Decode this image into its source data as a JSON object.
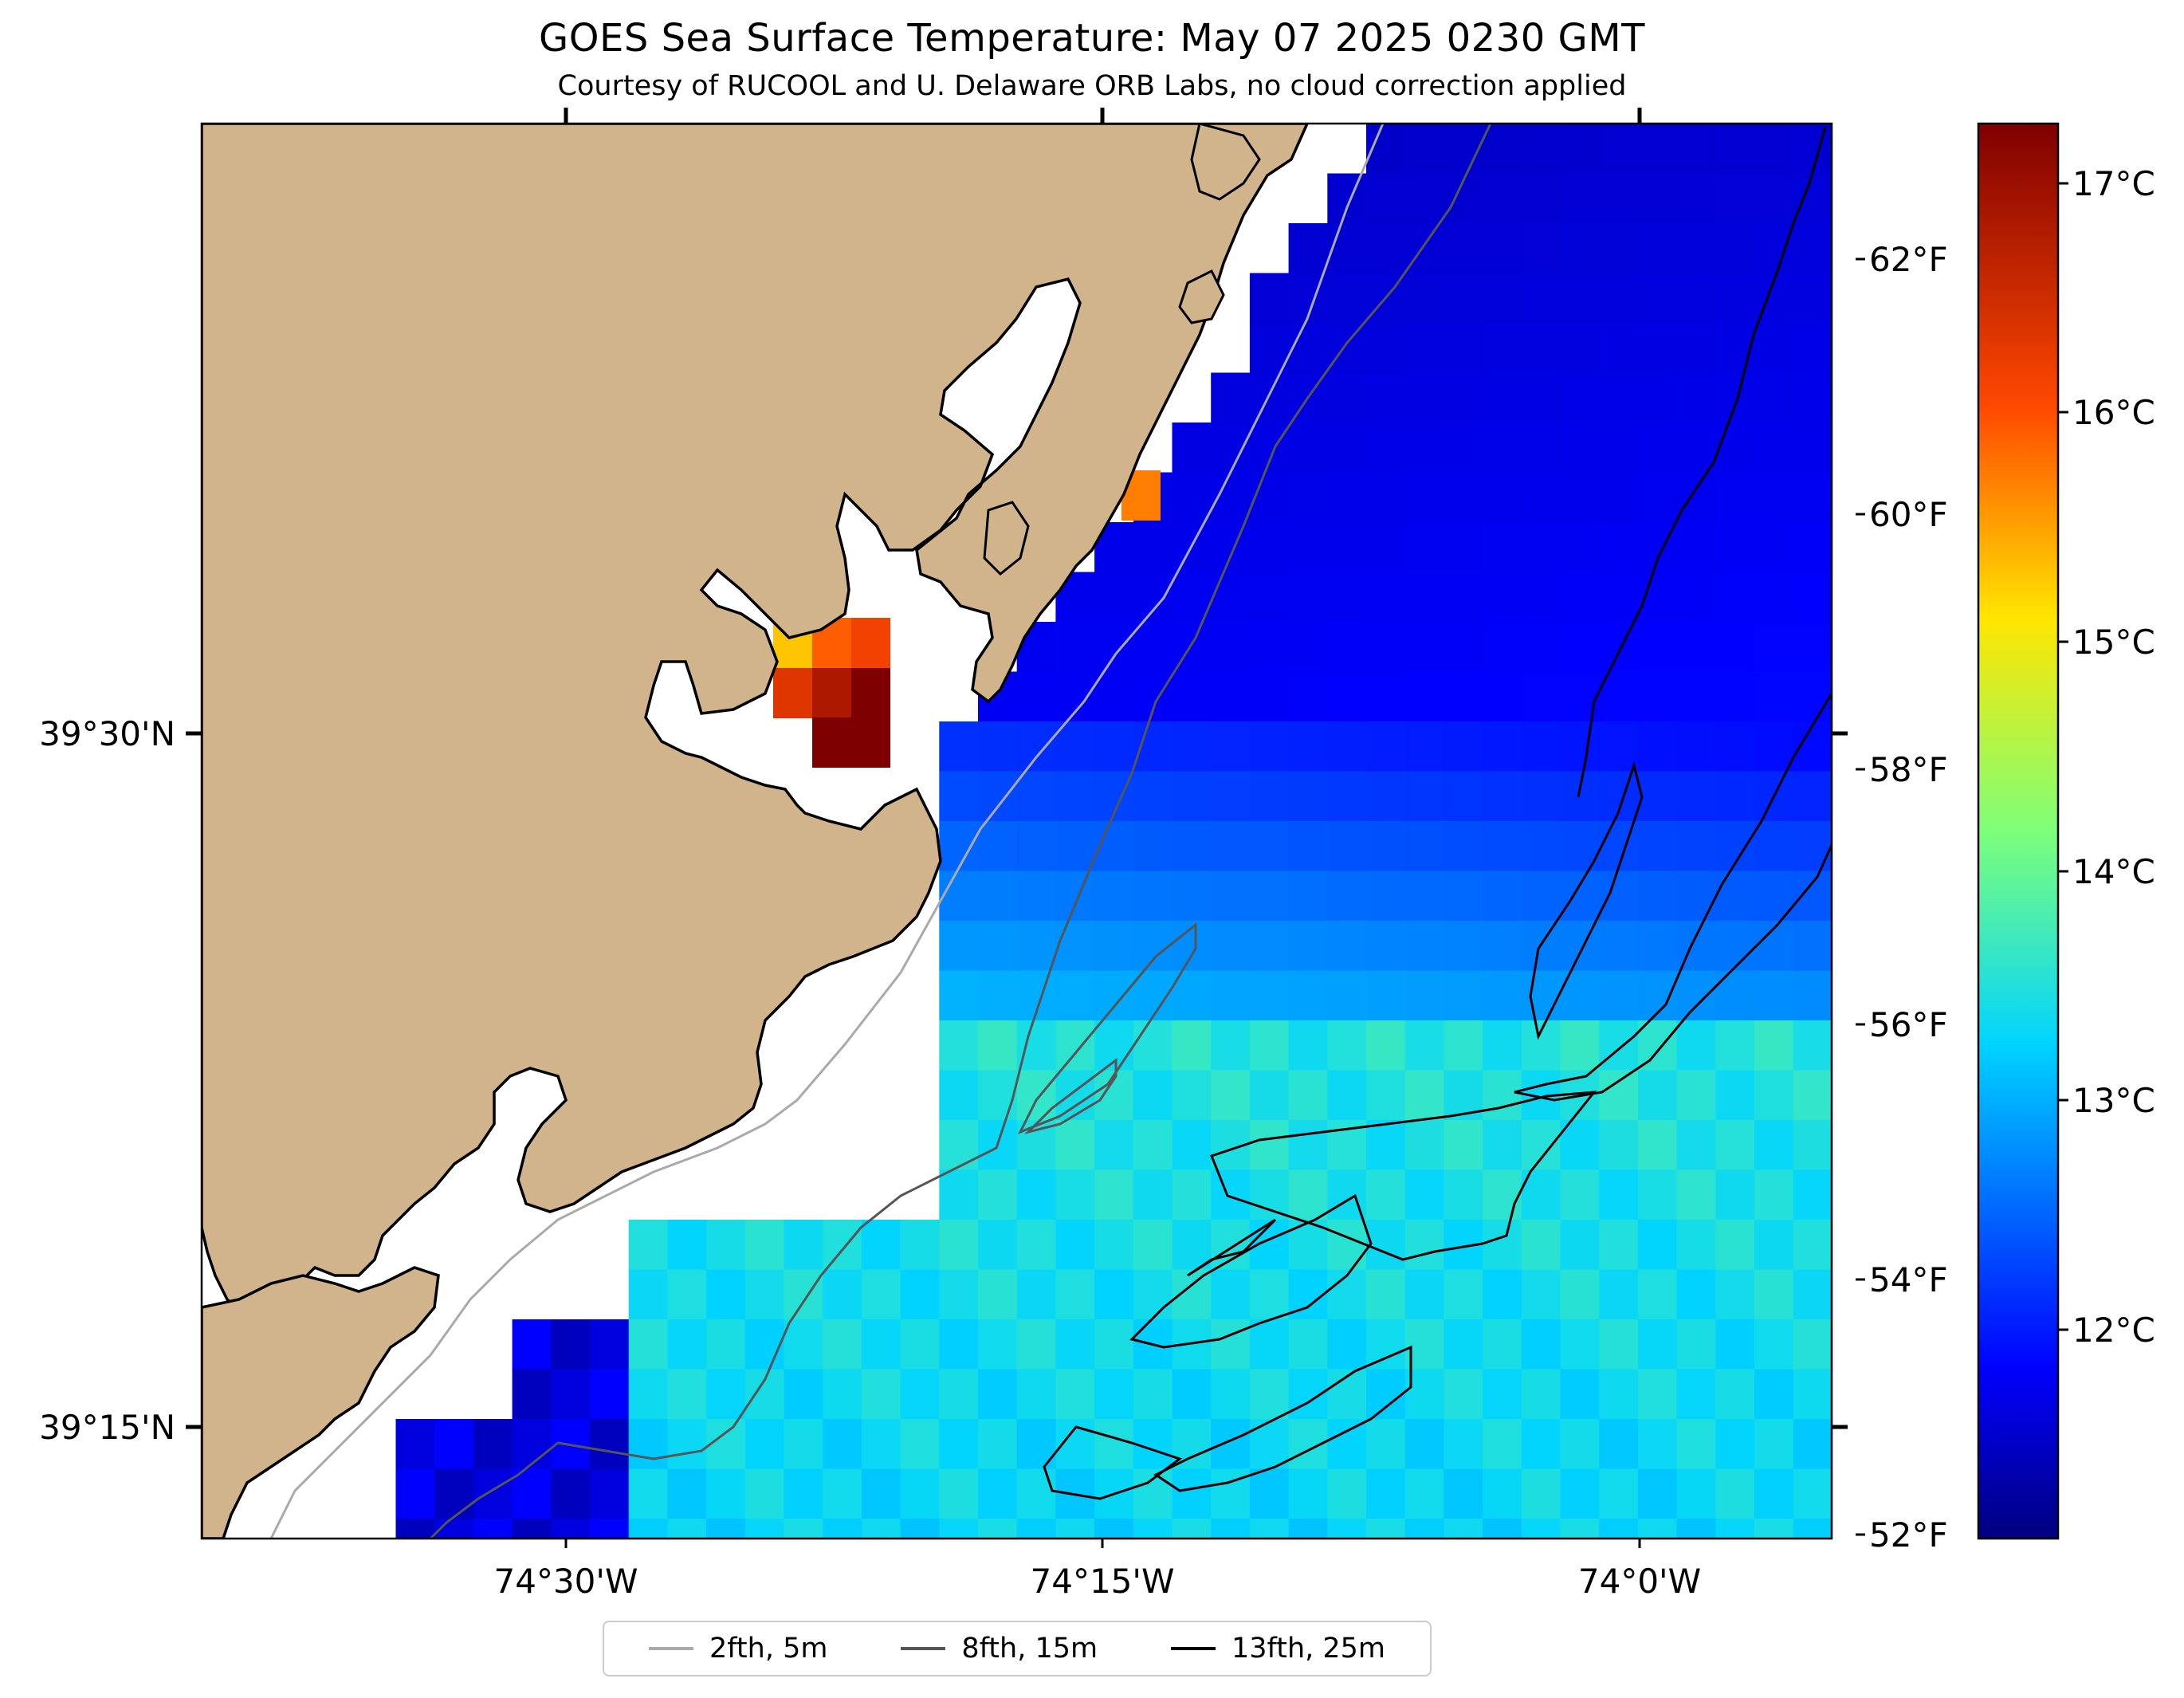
{
  "title": "GOES Sea Surface Temperature: May 07 2025 0230 GMT",
  "subtitle": "Courtesy of RUCOOL and U. Delaware ORB Labs, no cloud correction applied",
  "map": {
    "x_ticks": [
      "74°30'W",
      "74°15'W",
      "74°0'W"
    ],
    "y_ticks": [
      "39°30'N",
      "39°15'N"
    ],
    "land_color": "#D2B48C",
    "coast_color": "#000000"
  },
  "colorbar": {
    "colormap": "jet",
    "celsius_ticks": [
      "17°C",
      "16°C",
      "15°C",
      "14°C",
      "13°C",
      "12°C"
    ],
    "fahrenheit_ticks": [
      "62°F",
      "60°F",
      "58°F",
      "56°F",
      "54°F",
      "52°F"
    ],
    "range_celsius": [
      11.1,
      17.3
    ]
  },
  "legend": {
    "items": [
      {
        "label": "2fth, 5m",
        "color": "#aaaaaa"
      },
      {
        "label": "8fth, 15m",
        "color": "#555555"
      },
      {
        "label": "13fth, 25m",
        "color": "#000000"
      }
    ]
  }
}
